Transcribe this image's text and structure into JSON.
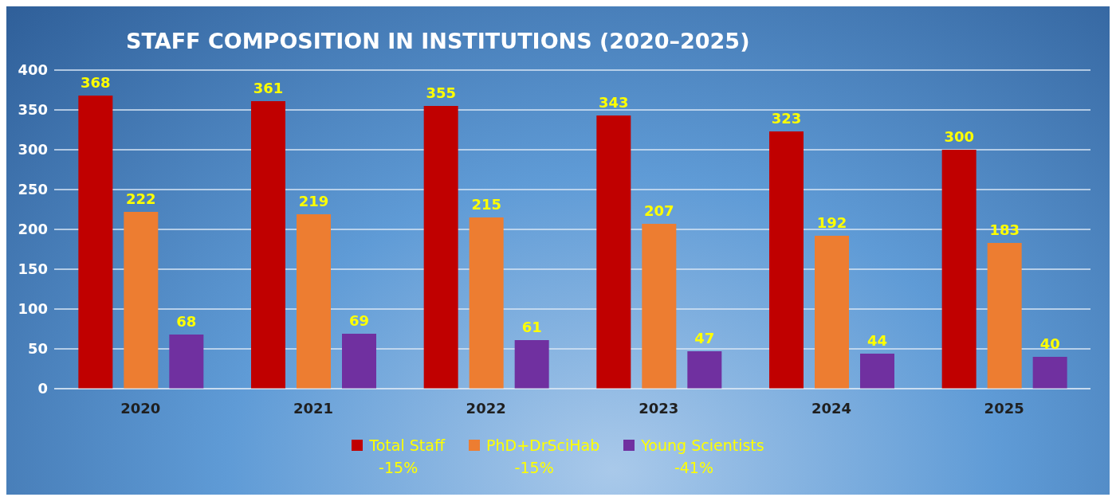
{
  "chart_data": {
    "type": "bar",
    "title": "STAFF COMPOSITION IN INSTITUTIONS (2020–2025)",
    "categories": [
      "2020",
      "2021",
      "2022",
      "2023",
      "2024",
      "2025"
    ],
    "series": [
      {
        "name": "Total Staff",
        "color": "#c00000",
        "values": [
          368,
          361,
          355,
          343,
          323,
          300
        ]
      },
      {
        "name": "PhD+DrSciHab",
        "color": "#ed7d31",
        "values": [
          222,
          219,
          215,
          207,
          192,
          183
        ]
      },
      {
        "name": "Young Scientists",
        "color": "#7030a0",
        "values": [
          68,
          69,
          61,
          47,
          44,
          40
        ]
      }
    ],
    "annotations": [
      "-15%",
      "-15%",
      "-41%"
    ],
    "ylim": [
      0,
      400
    ],
    "yticks": [
      0,
      50,
      100,
      150,
      200,
      250,
      300,
      350,
      400
    ],
    "grid": "y",
    "legend": "bottom",
    "data_labels": true
  }
}
